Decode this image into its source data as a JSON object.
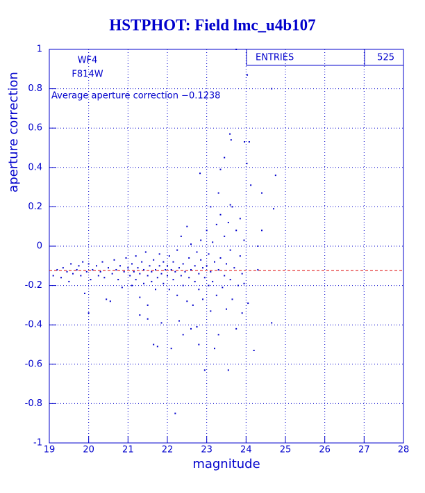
{
  "chart_data": {
    "type": "scatter",
    "title": "HSTPHOT: Field lmc_u4b107",
    "x_label": "magnitude",
    "y_label": "aperture correction",
    "annotations": [
      "WF4",
      "F814W",
      "Average aperture correction −0.1238"
    ],
    "stats": {
      "label": "ENTRIES",
      "value": 525
    },
    "hline": {
      "value": -0.1238,
      "color": "#dd0000"
    },
    "color": "#0000cc",
    "grid": true,
    "xlim": [
      19,
      28
    ],
    "ylim": [
      -1,
      1
    ],
    "xticks": [
      19,
      20,
      21,
      22,
      23,
      24,
      25,
      26,
      27,
      28
    ],
    "yticks": [
      -1,
      -0.8,
      -0.6,
      -0.4,
      -0.2,
      0,
      0.2,
      0.4,
      0.6,
      0.8,
      1
    ],
    "x": [
      19.1,
      19.2,
      19.3,
      19.35,
      19.45,
      19.5,
      19.55,
      19.6,
      19.7,
      19.75,
      19.8,
      19.85,
      19.9,
      19.95,
      20.0,
      20.0,
      20.05,
      20.1,
      20.2,
      20.25,
      20.3,
      20.35,
      20.4,
      20.45,
      20.5,
      20.55,
      20.6,
      20.65,
      20.7,
      20.75,
      20.8,
      20.85,
      20.9,
      20.95,
      21.0,
      21.05,
      21.1,
      21.1,
      21.15,
      21.2,
      21.2,
      21.25,
      21.3,
      21.3,
      21.35,
      21.4,
      21.4,
      21.45,
      21.5,
      21.5,
      21.55,
      21.6,
      21.6,
      21.65,
      21.7,
      21.7,
      21.75,
      21.8,
      21.8,
      21.85,
      21.85,
      21.9,
      21.9,
      21.95,
      21.75,
      21.65,
      21.3,
      21.5,
      22.0,
      22.0,
      22.05,
      22.05,
      22.1,
      22.1,
      22.15,
      22.15,
      22.2,
      22.2,
      22.25,
      22.25,
      22.3,
      22.3,
      22.35,
      22.35,
      22.4,
      22.4,
      22.45,
      22.5,
      22.5,
      22.55,
      22.55,
      22.6,
      22.6,
      22.65,
      22.7,
      22.7,
      22.75,
      22.75,
      22.8,
      22.8,
      22.85,
      22.85,
      22.9,
      22.9,
      22.95,
      22.95,
      22.8,
      22.4,
      22.6,
      23.0,
      23.0,
      23.05,
      23.05,
      23.1,
      23.1,
      23.15,
      23.15,
      23.2,
      23.2,
      23.25,
      23.25,
      23.3,
      23.3,
      23.35,
      23.35,
      23.4,
      23.45,
      23.45,
      23.5,
      23.5,
      23.55,
      23.55,
      23.6,
      23.6,
      23.65,
      23.65,
      23.7,
      23.75,
      23.75,
      23.8,
      23.85,
      23.85,
      23.9,
      23.9,
      23.95,
      23.95,
      23.75,
      24.65,
      24.03,
      23.59,
      23.62,
      23.96,
      24.08,
      23.45,
      24.02,
      23.35,
      24.75,
      22.83,
      24.12,
      24.4,
      23.3,
      23.1,
      23.6,
      24.7,
      24.4,
      24.3,
      24.05,
      24.65,
      24.2,
      24.3
    ],
    "y": [
      -0.15,
      -0.12,
      -0.16,
      -0.11,
      -0.13,
      -0.18,
      -0.09,
      -0.14,
      -0.12,
      -0.1,
      -0.15,
      -0.08,
      -0.24,
      -0.13,
      -0.34,
      -0.09,
      -0.17,
      -0.12,
      -0.1,
      -0.15,
      -0.13,
      -0.08,
      -0.16,
      -0.27,
      -0.11,
      -0.28,
      -0.14,
      -0.07,
      -0.12,
      -0.17,
      -0.1,
      -0.21,
      -0.13,
      -0.06,
      -0.11,
      -0.15,
      -0.09,
      -0.2,
      -0.13,
      -0.05,
      -0.17,
      -0.11,
      -0.26,
      -0.14,
      -0.08,
      -0.19,
      -0.12,
      -0.03,
      -0.15,
      -0.3,
      -0.1,
      -0.18,
      -0.13,
      -0.07,
      -0.22,
      -0.12,
      -0.16,
      -0.04,
      -0.1,
      -0.39,
      -0.14,
      -0.19,
      -0.08,
      -0.12,
      -0.51,
      -0.5,
      -0.35,
      -0.37,
      -0.1,
      -0.15,
      -0.05,
      -0.22,
      -0.12,
      -0.52,
      -0.08,
      -0.17,
      -0.13,
      -0.85,
      -0.02,
      -0.25,
      -0.11,
      -0.38,
      -0.15,
      0.05,
      -0.09,
      -0.2,
      -0.13,
      0.1,
      -0.28,
      -0.06,
      -0.16,
      -0.12,
      0.01,
      -0.3,
      -0.1,
      -0.18,
      -0.03,
      -0.41,
      -0.14,
      -0.22,
      -0.07,
      0.03,
      -0.11,
      -0.27,
      -0.16,
      -0.63,
      -0.5,
      -0.45,
      -0.42,
      -0.1,
      0.08,
      -0.2,
      -0.04,
      -0.13,
      -0.33,
      0.02,
      -0.18,
      -0.08,
      -0.52,
      -0.25,
      0.11,
      -0.12,
      -0.45,
      -0.06,
      0.16,
      -0.21,
      -0.15,
      0.05,
      -0.32,
      -0.09,
      0.12,
      -0.63,
      -0.17,
      -0.02,
      0.2,
      -0.27,
      -0.11,
      0.08,
      -0.42,
      -0.2,
      0.14,
      -0.05,
      -0.14,
      -0.34,
      -0.19,
      0.03,
      1.0,
      0.8,
      0.87,
      0.57,
      0.54,
      0.53,
      0.53,
      0.45,
      0.42,
      0.39,
      0.36,
      0.37,
      0.31,
      0.27,
      0.27,
      0.2,
      0.21,
      0.19,
      0.08,
      -0.12,
      -0.29,
      -0.39,
      -0.53,
      0.0
    ]
  }
}
